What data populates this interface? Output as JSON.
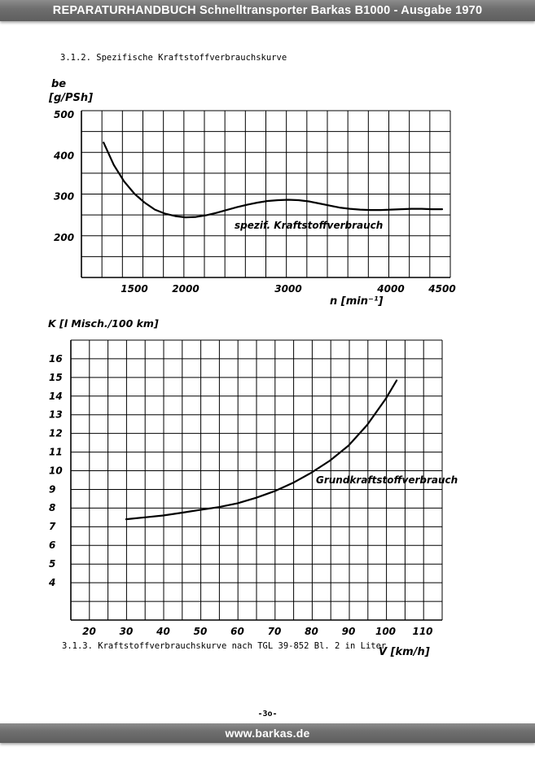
{
  "header": {
    "title": "REPARATURHANDBUCH Schnelltransporter Barkas B1000  -  Ausgabe 1970"
  },
  "footer": {
    "url": "www.barkas.de"
  },
  "page_number": "-3o-",
  "captions": {
    "top": "3.1.2.  Spezifische Kraftstoffverbrauchskurve",
    "bottom": "3.1.3. Kraftstoffverbrauchskurve nach TGL 39-852 Bl. 2 in Liter"
  },
  "chart_data": [
    {
      "type": "line",
      "ylabel_line1": "be",
      "ylabel_line2": "[g/PSh]",
      "xlabel": "n [min⁻¹]",
      "xlim": [
        1000,
        4500
      ],
      "ylim": [
        150,
        500
      ],
      "x_ticks": [
        "1500",
        "2000",
        "3000",
        "4000",
        "4500"
      ],
      "y_ticks": [
        "500",
        "400",
        "300",
        "200"
      ],
      "grid": true,
      "annotation": "spezif. Kraftstoffverbrauch",
      "series": [
        {
          "x": [
            1200,
            1300,
            1400,
            1500,
            1600,
            1700,
            1800,
            1900,
            2000,
            2100,
            2200,
            2300,
            2400,
            2500,
            2600,
            2700,
            2800,
            2900,
            3000,
            3100,
            3200,
            3300,
            3400,
            3500,
            3600,
            3700,
            3800,
            3900,
            4000,
            4100,
            4200,
            4300,
            4400,
            4500
          ],
          "y": [
            430,
            375,
            335,
            305,
            283,
            266,
            256,
            250,
            247,
            248,
            252,
            258,
            265,
            272,
            278,
            283,
            287,
            289,
            290,
            289,
            286,
            281,
            276,
            271,
            268,
            266,
            265,
            265,
            266,
            267,
            268,
            268,
            267,
            267
          ]
        }
      ]
    },
    {
      "type": "line",
      "ylabel": "K [l Misch./100 km]",
      "xlabel": "V [km/h]",
      "xlim": [
        15,
        115
      ],
      "ylim": [
        2,
        17
      ],
      "x_ticks": [
        "20",
        "30",
        "40",
        "50",
        "60",
        "70",
        "80",
        "90",
        "100",
        "110"
      ],
      "y_ticks": [
        "16",
        "15",
        "14",
        "13",
        "12",
        "11",
        "10",
        "9",
        "8",
        "7",
        "6",
        "5",
        "4"
      ],
      "grid": true,
      "annotation": "Grundkraftstoffverbrauch",
      "series": [
        {
          "x": [
            30,
            35,
            40,
            45,
            50,
            55,
            60,
            65,
            70,
            75,
            80,
            85,
            90,
            95,
            100,
            103
          ],
          "y": [
            7.35,
            7.45,
            7.55,
            7.7,
            7.85,
            8.0,
            8.2,
            8.5,
            8.85,
            9.3,
            9.85,
            10.5,
            11.3,
            12.4,
            13.8,
            14.8
          ]
        }
      ]
    }
  ]
}
